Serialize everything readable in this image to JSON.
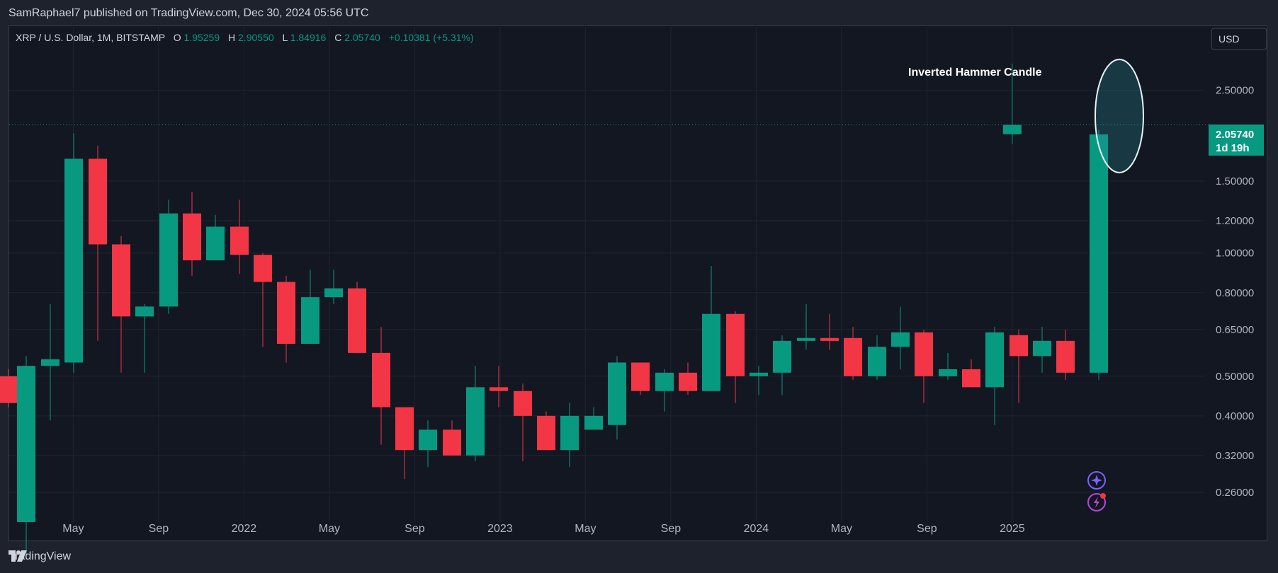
{
  "header": {
    "published_line": "SamRaphael7 published on TradingView.com, Dec 30, 2024 05:56 UTC"
  },
  "footer": {
    "brand": "TradingView"
  },
  "colors": {
    "background": "#131722",
    "up": "#089981",
    "down": "#f23645",
    "grid": "#1f2430",
    "text": "#b2b5be",
    "accent_purple": "#7b61ff",
    "price_label_bg": "#089981"
  },
  "chart_data": {
    "type": "candlestick",
    "legend_line": {
      "symbol": "XRP / U.S. Dollar, 1M, BITSTAMP",
      "o_label": "O",
      "o_value": "1.95259",
      "h_label": "H",
      "h_value": "2.90550",
      "l_label": "L",
      "l_value": "1.84916",
      "c_label": "C",
      "c_value": "2.05740",
      "change": "+0.10381 (+5.31%)"
    },
    "currency_button": "USD",
    "annotation": "Inverted Hammer Candle",
    "last_price": {
      "value": "2.05740",
      "countdown": "1d 19h"
    },
    "y_axis": {
      "scale": "log",
      "range": [
        0.22,
        3.6
      ],
      "ticks": [
        {
          "value": 2.5,
          "label": "2.50000"
        },
        {
          "value": 1.5,
          "label": "1.50000"
        },
        {
          "value": 1.2,
          "label": "1.20000"
        },
        {
          "value": 1.0,
          "label": "1.00000"
        },
        {
          "value": 0.8,
          "label": "0.80000"
        },
        {
          "value": 0.65,
          "label": "0.65000"
        },
        {
          "value": 0.5,
          "label": "0.50000"
        },
        {
          "value": 0.4,
          "label": "0.40000"
        },
        {
          "value": 0.32,
          "label": "0.32000"
        },
        {
          "value": 0.26,
          "label": "0.26000"
        }
      ]
    },
    "x_axis": {
      "ticks": [
        {
          "index": 3,
          "label": "May"
        },
        {
          "index": 7,
          "label": "Sep"
        },
        {
          "index": 11,
          "label": "2022"
        },
        {
          "index": 15,
          "label": "May"
        },
        {
          "index": 19,
          "label": "Sep"
        },
        {
          "index": 23,
          "label": "2023"
        },
        {
          "index": 27,
          "label": "May"
        },
        {
          "index": 31,
          "label": "Sep"
        },
        {
          "index": 35,
          "label": "2024"
        },
        {
          "index": 39,
          "label": "May"
        },
        {
          "index": 43,
          "label": "Sep"
        },
        {
          "index": 47,
          "label": "2025"
        }
      ]
    },
    "candles": [
      {
        "date": "2020-12",
        "o": 0.5,
        "h": 0.52,
        "l": 0.42,
        "c": 0.43
      },
      {
        "date": "2021-01",
        "o": 0.22,
        "h": 0.56,
        "l": 0.18,
        "c": 0.53
      },
      {
        "date": "2021-02",
        "o": 0.53,
        "h": 0.75,
        "l": 0.39,
        "c": 0.55
      },
      {
        "date": "2021-03",
        "o": 0.54,
        "h": 1.96,
        "l": 0.51,
        "c": 1.7
      },
      {
        "date": "2021-04",
        "o": 1.7,
        "h": 1.83,
        "l": 0.61,
        "c": 1.05
      },
      {
        "date": "2021-05",
        "o": 1.05,
        "h": 1.1,
        "l": 0.51,
        "c": 0.7
      },
      {
        "date": "2021-06",
        "o": 0.7,
        "h": 0.75,
        "l": 0.51,
        "c": 0.74
      },
      {
        "date": "2021-07",
        "o": 0.74,
        "h": 1.35,
        "l": 0.71,
        "c": 1.25
      },
      {
        "date": "2021-08",
        "o": 1.25,
        "h": 1.41,
        "l": 0.88,
        "c": 0.96
      },
      {
        "date": "2021-09",
        "o": 0.96,
        "h": 1.24,
        "l": 0.96,
        "c": 1.16
      },
      {
        "date": "2021-10",
        "o": 1.16,
        "h": 1.35,
        "l": 0.89,
        "c": 0.99
      },
      {
        "date": "2021-11",
        "o": 0.99,
        "h": 1.0,
        "l": 0.59,
        "c": 0.85
      },
      {
        "date": "2021-12",
        "o": 0.85,
        "h": 0.88,
        "l": 0.54,
        "c": 0.6
      },
      {
        "date": "2022-01",
        "o": 0.6,
        "h": 0.91,
        "l": 0.6,
        "c": 0.78
      },
      {
        "date": "2022-02",
        "o": 0.78,
        "h": 0.91,
        "l": 0.75,
        "c": 0.82
      },
      {
        "date": "2022-03",
        "o": 0.82,
        "h": 0.85,
        "l": 0.57,
        "c": 0.57
      },
      {
        "date": "2022-04",
        "o": 0.57,
        "h": 0.66,
        "l": 0.34,
        "c": 0.42
      },
      {
        "date": "2022-05",
        "o": 0.42,
        "h": 0.42,
        "l": 0.28,
        "c": 0.33
      },
      {
        "date": "2022-06",
        "o": 0.33,
        "h": 0.39,
        "l": 0.3,
        "c": 0.37
      },
      {
        "date": "2022-07",
        "o": 0.37,
        "h": 0.39,
        "l": 0.32,
        "c": 0.32
      },
      {
        "date": "2022-08",
        "o": 0.32,
        "h": 0.53,
        "l": 0.31,
        "c": 0.47
      },
      {
        "date": "2022-09",
        "o": 0.47,
        "h": 0.53,
        "l": 0.42,
        "c": 0.46
      },
      {
        "date": "2022-10",
        "o": 0.46,
        "h": 0.48,
        "l": 0.31,
        "c": 0.4
      },
      {
        "date": "2022-11",
        "o": 0.4,
        "h": 0.41,
        "l": 0.33,
        "c": 0.33
      },
      {
        "date": "2022-12",
        "o": 0.33,
        "h": 0.43,
        "l": 0.3,
        "c": 0.4
      },
      {
        "date": "2023-01",
        "o": 0.37,
        "h": 0.42,
        "l": 0.37,
        "c": 0.4
      },
      {
        "date": "2023-02",
        "o": 0.38,
        "h": 0.56,
        "l": 0.35,
        "c": 0.54
      },
      {
        "date": "2023-03",
        "o": 0.54,
        "h": 0.54,
        "l": 0.45,
        "c": 0.46
      },
      {
        "date": "2023-04",
        "o": 0.46,
        "h": 0.52,
        "l": 0.41,
        "c": 0.51
      },
      {
        "date": "2023-05",
        "o": 0.51,
        "h": 0.54,
        "l": 0.45,
        "c": 0.46
      },
      {
        "date": "2023-06",
        "o": 0.46,
        "h": 0.93,
        "l": 0.46,
        "c": 0.71
      },
      {
        "date": "2023-07",
        "o": 0.71,
        "h": 0.72,
        "l": 0.43,
        "c": 0.5
      },
      {
        "date": "2023-08",
        "o": 0.5,
        "h": 0.53,
        "l": 0.45,
        "c": 0.51
      },
      {
        "date": "2023-09",
        "o": 0.51,
        "h": 0.63,
        "l": 0.45,
        "c": 0.61
      },
      {
        "date": "2023-10",
        "o": 0.61,
        "h": 0.75,
        "l": 0.58,
        "c": 0.62
      },
      {
        "date": "2023-11",
        "o": 0.62,
        "h": 0.71,
        "l": 0.58,
        "c": 0.61
      },
      {
        "date": "2023-12",
        "o": 0.62,
        "h": 0.66,
        "l": 0.49,
        "c": 0.5
      },
      {
        "date": "2024-01",
        "o": 0.5,
        "h": 0.63,
        "l": 0.49,
        "c": 0.59
      },
      {
        "date": "2024-02",
        "o": 0.59,
        "h": 0.74,
        "l": 0.52,
        "c": 0.64
      },
      {
        "date": "2024-03",
        "o": 0.64,
        "h": 0.65,
        "l": 0.43,
        "c": 0.5
      },
      {
        "date": "2024-04",
        "o": 0.5,
        "h": 0.57,
        "l": 0.49,
        "c": 0.52
      },
      {
        "date": "2024-05",
        "o": 0.52,
        "h": 0.55,
        "l": 0.47,
        "c": 0.47
      },
      {
        "date": "2024-06",
        "o": 0.47,
        "h": 0.66,
        "l": 0.38,
        "c": 0.64
      },
      {
        "date": "2024-07",
        "o": 0.63,
        "h": 0.65,
        "l": 0.43,
        "c": 0.56
      },
      {
        "date": "2024-08",
        "o": 0.56,
        "h": 0.66,
        "l": 0.51,
        "c": 0.61
      },
      {
        "date": "2024-09",
        "o": 0.61,
        "h": 0.65,
        "l": 0.49,
        "c": 0.51
      },
      {
        "date": "2024-10",
        "o": 0.51,
        "h": 2.0,
        "l": 0.49,
        "c": 1.95
      },
      {
        "date": "2024-12",
        "o": 1.95259,
        "h": 2.9055,
        "l": 1.84916,
        "c": 2.0574
      }
    ]
  }
}
